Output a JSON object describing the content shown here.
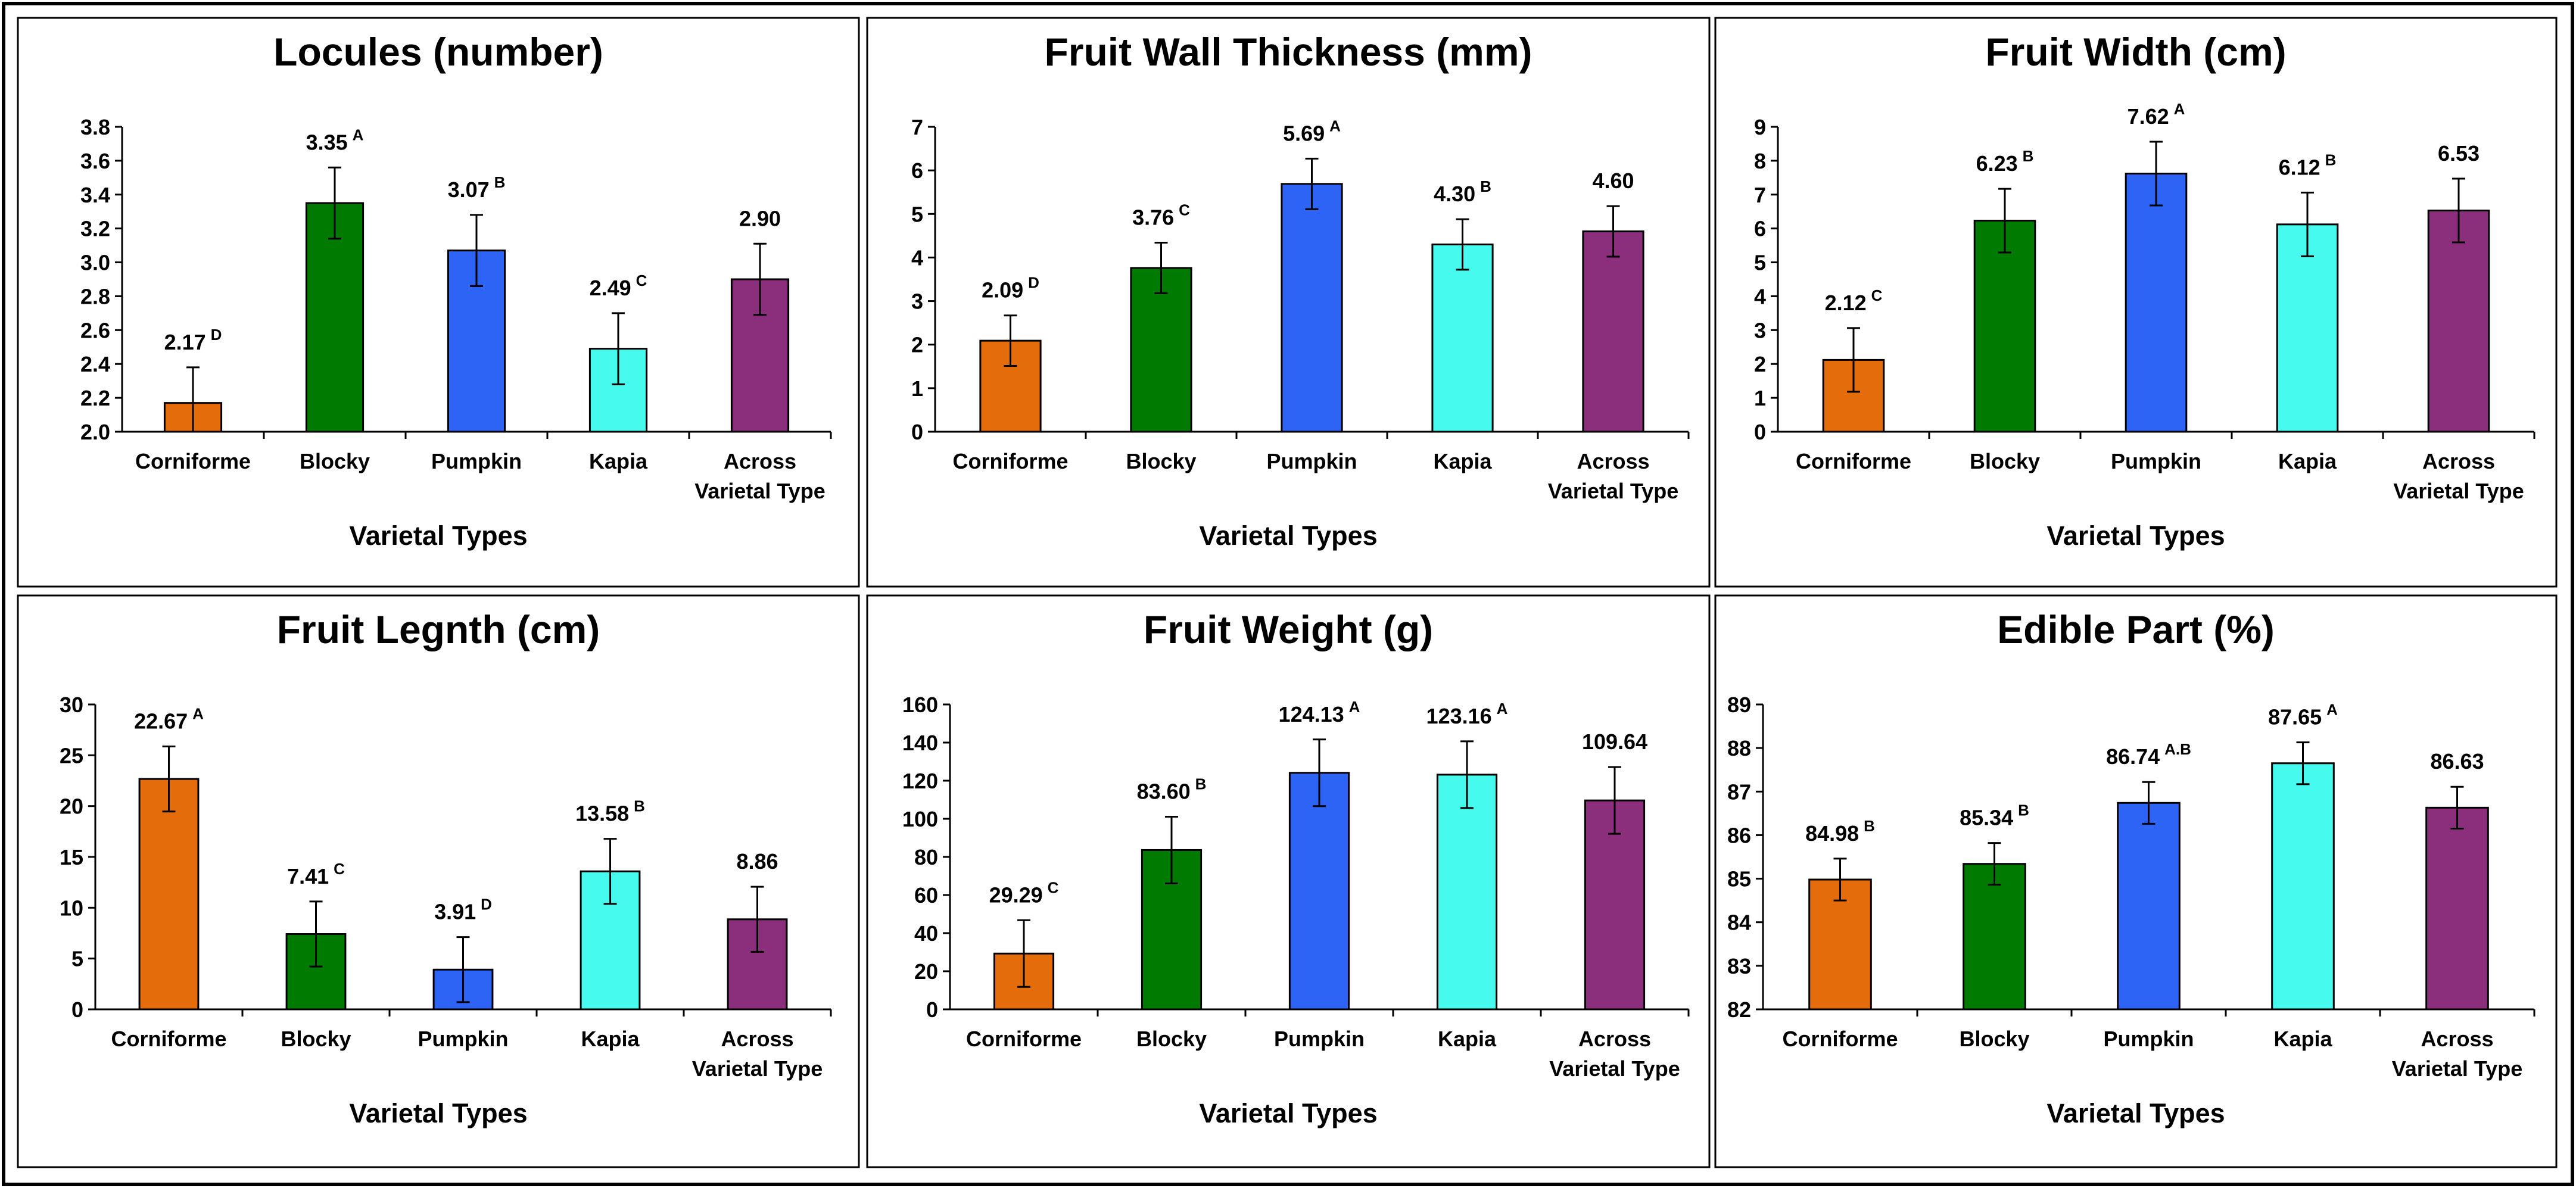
{
  "chart_data": [
    {
      "type": "bar",
      "title": "Locules (number)",
      "xlabel": "Varietal Types",
      "ylabel": "",
      "categories": [
        "Corniforme",
        "Blocky",
        "Pumpkin",
        "Kapia",
        "Across Varietal Type"
      ],
      "category_lines": [
        [
          "Corniforme"
        ],
        [
          "Blocky"
        ],
        [
          "Pumpkin"
        ],
        [
          "Kapia"
        ],
        [
          "Across",
          "Varietal Type"
        ]
      ],
      "values": [
        2.17,
        3.35,
        3.07,
        2.49,
        2.9
      ],
      "errors": [
        0.21,
        0.21,
        0.21,
        0.21,
        0.21
      ],
      "labels": [
        "2.17",
        "3.35",
        "3.07",
        "2.49",
        "2.90"
      ],
      "letters": [
        "D",
        "A",
        "B",
        "C",
        ""
      ],
      "ylim": [
        2.0,
        3.8
      ],
      "yticks": [
        "2.0",
        "2.2",
        "2.4",
        "2.6",
        "2.8",
        "3.0",
        "3.2",
        "3.4",
        "3.6",
        "3.8"
      ]
    },
    {
      "type": "bar",
      "title": "Fruit Wall Thickness (mm)",
      "xlabel": "Varietal Types",
      "ylabel": "",
      "categories": [
        "Corniforme",
        "Blocky",
        "Pumpkin",
        "Kapia",
        "Across Varietal Type"
      ],
      "category_lines": [
        [
          "Corniforme"
        ],
        [
          "Blocky"
        ],
        [
          "Pumpkin"
        ],
        [
          "Kapia"
        ],
        [
          "Across",
          "Varietal Type"
        ]
      ],
      "values": [
        2.09,
        3.76,
        5.69,
        4.3,
        4.6
      ],
      "errors": [
        0.58,
        0.58,
        0.58,
        0.58,
        0.58
      ],
      "labels": [
        "2.09",
        "3.76",
        "5.69",
        "4.30",
        "4.60"
      ],
      "letters": [
        "D",
        "C",
        "A",
        "B",
        ""
      ],
      "ylim": [
        0,
        7
      ],
      "yticks": [
        "0",
        "1",
        "2",
        "3",
        "4",
        "5",
        "6",
        "7"
      ]
    },
    {
      "type": "bar",
      "title": "Fruit Width (cm)",
      "xlabel": "Varietal Types",
      "ylabel": "",
      "categories": [
        "Corniforme",
        "Blocky",
        "Pumpkin",
        "Kapia",
        "Across Varietal Type"
      ],
      "category_lines": [
        [
          "Corniforme"
        ],
        [
          "Blocky"
        ],
        [
          "Pumpkin"
        ],
        [
          "Kapia"
        ],
        [
          "Across",
          "Varietal Type"
        ]
      ],
      "values": [
        2.12,
        6.23,
        7.62,
        6.12,
        6.53
      ],
      "errors": [
        0.94,
        0.94,
        0.94,
        0.94,
        0.94
      ],
      "labels": [
        "2.12",
        "6.23",
        "7.62",
        "6.12",
        "6.53"
      ],
      "letters": [
        "C",
        "B",
        "A",
        "B",
        ""
      ],
      "ylim": [
        0,
        9
      ],
      "yticks": [
        "0",
        "1",
        "2",
        "3",
        "4",
        "5",
        "6",
        "7",
        "8",
        "9"
      ]
    },
    {
      "type": "bar",
      "title": "Fruit Legnth (cm)",
      "xlabel": "Varietal Types",
      "ylabel": "",
      "categories": [
        "Corniforme",
        "Blocky",
        "Pumpkin",
        "Kapia",
        "Across Varietal Type"
      ],
      "category_lines": [
        [
          "Corniforme"
        ],
        [
          "Blocky"
        ],
        [
          "Pumpkin"
        ],
        [
          "Kapia"
        ],
        [
          "Across",
          "Varietal Type"
        ]
      ],
      "values": [
        22.67,
        7.41,
        3.91,
        13.58,
        8.86
      ],
      "errors": [
        3.2,
        3.2,
        3.2,
        3.2,
        3.2
      ],
      "labels": [
        "22.67",
        "7.41",
        "3.91",
        "13.58",
        "8.86"
      ],
      "letters": [
        "A",
        "C",
        "D",
        "B",
        ""
      ],
      "ylim": [
        0,
        30
      ],
      "yticks": [
        "0",
        "5",
        "10",
        "15",
        "20",
        "25",
        "30"
      ]
    },
    {
      "type": "bar",
      "title": "Fruit Weight (g)",
      "xlabel": "Varietal Types",
      "ylabel": "",
      "categories": [
        "Corniforme",
        "Blocky",
        "Pumpkin",
        "Kapia",
        "Across Varietal Type"
      ],
      "category_lines": [
        [
          "Corniforme"
        ],
        [
          "Blocky"
        ],
        [
          "Pumpkin"
        ],
        [
          "Kapia"
        ],
        [
          "Across",
          "Varietal Type"
        ]
      ],
      "values": [
        29.29,
        83.6,
        124.13,
        123.16,
        109.64
      ],
      "errors": [
        17.5,
        17.5,
        17.5,
        17.5,
        17.5
      ],
      "labels": [
        "29.29",
        "83.60",
        "124.13",
        "123.16",
        "109.64"
      ],
      "letters": [
        "C",
        "B",
        "A",
        "A",
        ""
      ],
      "ylim": [
        0,
        160
      ],
      "yticks": [
        "0",
        "20",
        "40",
        "60",
        "80",
        "100",
        "120",
        "140",
        "160"
      ]
    },
    {
      "type": "bar",
      "title": "Edible Part (%)",
      "xlabel": "Varietal Types",
      "ylabel": "",
      "categories": [
        "Corniforme",
        "Blocky",
        "Pumpkin",
        "Kapia",
        "Across Varietal Type"
      ],
      "category_lines": [
        [
          "Corniforme"
        ],
        [
          "Blocky"
        ],
        [
          "Pumpkin"
        ],
        [
          "Kapia"
        ],
        [
          "Across",
          "Varietal Type"
        ]
      ],
      "values": [
        84.98,
        85.34,
        86.74,
        87.65,
        86.63
      ],
      "errors": [
        0.48,
        0.48,
        0.48,
        0.48,
        0.48
      ],
      "labels": [
        "84.98",
        "85.34",
        "86.74",
        "87.65",
        "86.63"
      ],
      "letters": [
        "B",
        "B",
        "A.B",
        "A",
        ""
      ],
      "ylim": [
        82,
        89
      ],
      "yticks": [
        "82",
        "83",
        "84",
        "85",
        "86",
        "87",
        "88",
        "89"
      ]
    }
  ],
  "colors": {
    "series": [
      "#E46C0A",
      "#007A00",
      "#2E64F6",
      "#46FAEE",
      "#8B2F7D"
    ],
    "frame": "#000000",
    "background": "#FFFFFF"
  }
}
